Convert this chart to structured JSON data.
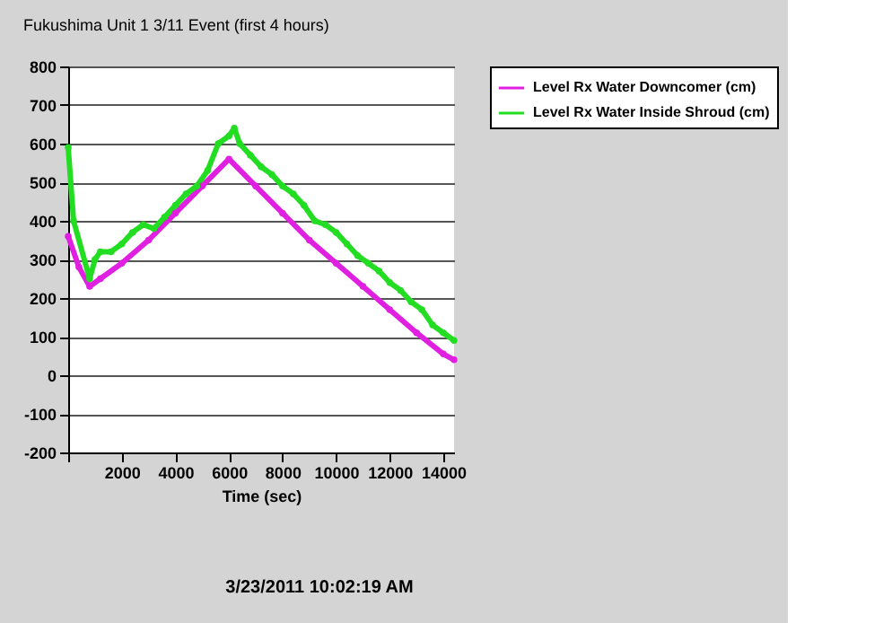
{
  "chart_data": {
    "type": "line",
    "title": "Fukushima Unit 1 3/11 Event (first 4 hours)",
    "xlabel": "Time (sec)",
    "xlim": [
      0,
      14400
    ],
    "xticks": [
      {
        "value": 0,
        "label": null
      },
      2000,
      4000,
      6000,
      8000,
      10000,
      12000,
      14000
    ],
    "ylim": [
      -200,
      800
    ],
    "yticks": [
      -200,
      -100,
      0,
      100,
      200,
      300,
      400,
      500,
      600,
      700,
      800
    ],
    "grid": "y",
    "legend": "right",
    "marker": "circle",
    "line_style": "solid",
    "series": [
      {
        "name": "Level Rx Water Downcomer (cm)",
        "color": "#e020e0",
        "x": [
          0,
          400,
          800,
          1200,
          2000,
          3000,
          4000,
          5000,
          6000,
          7000,
          8000,
          9000,
          10000,
          11000,
          12000,
          13000,
          14000,
          14400
        ],
        "values": [
          360,
          280,
          230,
          250,
          290,
          350,
          420,
          490,
          560,
          490,
          420,
          350,
          290,
          230,
          170,
          110,
          55,
          40
        ]
      },
      {
        "name": "Level Rx Water Inside Shroud (cm)",
        "color": "#22dd22",
        "x": [
          0,
          200,
          800,
          1000,
          1200,
          1600,
          2000,
          2400,
          2800,
          3200,
          3600,
          4000,
          4400,
          4800,
          5200,
          5600,
          6000,
          6200,
          6400,
          6800,
          7200,
          7600,
          8000,
          8400,
          8800,
          9200,
          9600,
          10000,
          10400,
          10800,
          11200,
          11600,
          12000,
          12400,
          12800,
          13200,
          13600,
          14000,
          14400
        ],
        "values": [
          590,
          400,
          250,
          300,
          320,
          320,
          340,
          370,
          390,
          380,
          410,
          440,
          470,
          490,
          530,
          600,
          620,
          640,
          600,
          570,
          540,
          520,
          490,
          470,
          440,
          400,
          390,
          370,
          340,
          310,
          290,
          270,
          240,
          220,
          190,
          170,
          130,
          110,
          90
        ]
      }
    ],
    "annotations": [
      "3/23/2011 10:02:19 AM"
    ]
  }
}
